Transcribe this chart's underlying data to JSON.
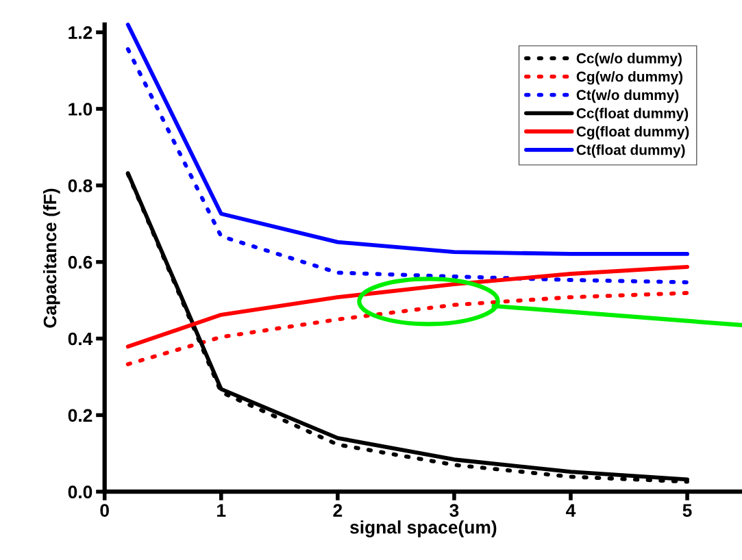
{
  "chart_data": {
    "type": "line",
    "xlabel": "signal space(um)",
    "ylabel": "Capacitance (fF)",
    "x": [
      0.2,
      1,
      2,
      3,
      4,
      5
    ],
    "xlim": [
      0,
      5.47
    ],
    "xticks": [
      0,
      1,
      2,
      3,
      4,
      5
    ],
    "ylim": [
      0,
      1.22
    ],
    "yticks": [
      {
        "value": 0,
        "label": "0.0"
      },
      0.2,
      0.4,
      0.6,
      0.8,
      {
        "value": 1,
        "label": "1.0"
      },
      1.2
    ],
    "grid": false,
    "legend": "top right",
    "marker": "none",
    "series": [
      {
        "name": "Cc(w/o dummy)",
        "color": "#000000",
        "line_style": "dotted",
        "values": [
          0.83,
          0.26,
          0.123,
          0.07,
          0.039,
          0.026
        ]
      },
      {
        "name": "Cg(w/o dummy)",
        "color": "#ff0000",
        "line_style": "dotted",
        "values": [
          0.333,
          0.404,
          0.45,
          0.488,
          0.508,
          0.519
        ]
      },
      {
        "name": "Ct(w/o dummy)",
        "color": "#0000ff",
        "line_style": "dotted",
        "values": [
          1.156,
          0.667,
          0.572,
          0.562,
          0.553,
          0.547
        ]
      },
      {
        "name": "Cc(float dummy)",
        "color": "#000000",
        "line_style": "solid",
        "values": [
          0.832,
          0.268,
          0.14,
          0.084,
          0.052,
          0.032
        ]
      },
      {
        "name": "Cg(float dummy)",
        "color": "#ff0000",
        "line_style": "solid",
        "values": [
          0.379,
          0.462,
          0.508,
          0.542,
          0.569,
          0.587
        ]
      },
      {
        "name": "Ct(float dummy)",
        "color": "#0000ff",
        "line_style": "solid",
        "values": [
          1.22,
          0.726,
          0.652,
          0.626,
          0.621,
          0.621
        ]
      }
    ]
  }
}
